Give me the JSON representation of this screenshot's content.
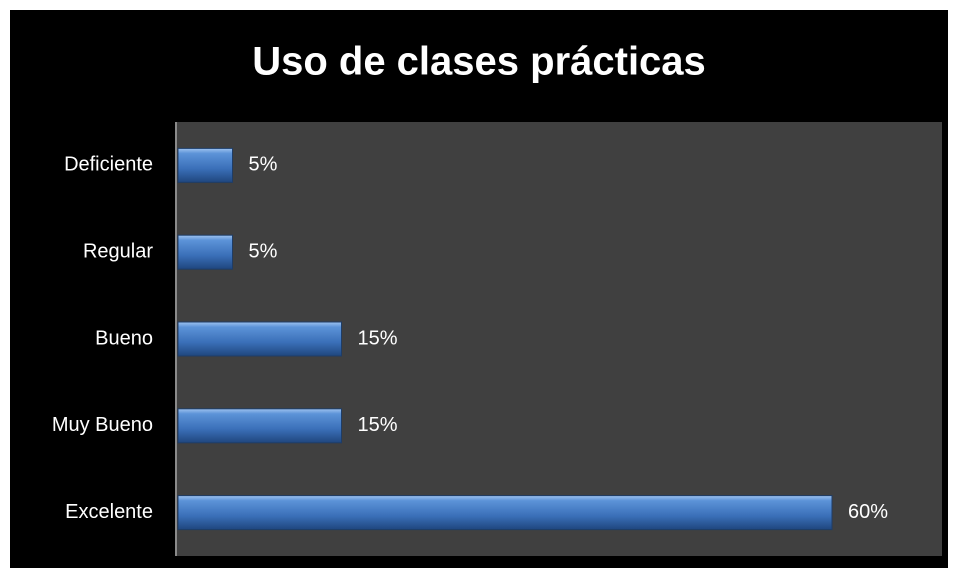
{
  "chart_data": {
    "type": "bar",
    "orientation": "horizontal",
    "title": "Uso de clases prácticas",
    "categories": [
      "Deficiente",
      "Regular",
      "Bueno",
      "Muy Bueno",
      "Excelente"
    ],
    "values": [
      5,
      5,
      15,
      15,
      60
    ],
    "value_labels": [
      "5%",
      "5%",
      "15%",
      "15%",
      "60%"
    ],
    "color": "#4f81bd"
  }
}
